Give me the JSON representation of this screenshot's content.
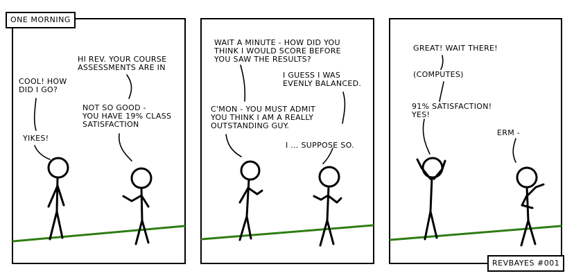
{
  "comic": {
    "caption": "ONE MORNING",
    "signature": "REVBAYES #001",
    "colors": {
      "ground": "#2e7d12",
      "ink": "#000000",
      "background": "#ffffff"
    },
    "panel1": {
      "speech_a": "HI REV. YOUR COURSE\nASSESSMENTS ARE IN",
      "speech_b": "COOL! HOW\nDID I GO?",
      "speech_c": "NOT SO GOOD -\nYOU HAVE 19% CLASS\nSATISFACTION",
      "speech_d": "YIKES!"
    },
    "panel2": {
      "speech_a": "WAIT A MINUTE - HOW DID YOU\nTHINK I WOULD SCORE BEFORE\nYOU SAW THE RESULTS?",
      "speech_b": "I GUESS I WAS\nEVENLY BALANCED.",
      "speech_c": "C'MON - YOU MUST ADMIT\nYOU THINK I AM A REALLY\nOUTSTANDING GUY.",
      "speech_d": "I ... SUPPOSE SO."
    },
    "panel3": {
      "speech_a": "GREAT! WAIT THERE!",
      "speech_b": "(COMPUTES)",
      "speech_c": "91% SATISFACTION!\nYES!",
      "speech_d": "ERM -"
    }
  }
}
